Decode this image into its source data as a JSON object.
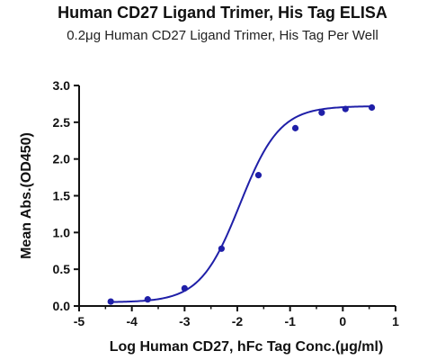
{
  "chart_data": {
    "type": "line",
    "title": "Human CD27 Ligand Trimer, His Tag ELISA",
    "subtitle": "0.2μg Human CD27 Ligand Trimer, His Tag Per Well",
    "xlabel": "Log Human CD27, hFc Tag Conc.(μg/ml)",
    "ylabel": "Mean Abs.(OD450)",
    "xlim": [
      -5,
      1
    ],
    "ylim": [
      0,
      3.0
    ],
    "xticks": [
      "-5",
      "-4",
      "-3",
      "-2",
      "-1",
      "0",
      "1"
    ],
    "yticks": [
      "0.0",
      "0.5",
      "1.0",
      "1.5",
      "2.0",
      "2.5",
      "3.0"
    ],
    "grid": false,
    "series": [
      {
        "x": [
          -4.4,
          -3.7,
          -3.0,
          -2.3,
          -1.6,
          -0.9,
          -0.4,
          0.05,
          0.55
        ],
        "y": [
          0.06,
          0.09,
          0.24,
          0.78,
          1.78,
          2.42,
          2.63,
          2.68,
          2.7
        ],
        "fit": {
          "bottom": 0.05,
          "top": 2.72,
          "logEC50": -1.95,
          "hill": 1.15
        },
        "color": "#1f1fa8"
      }
    ]
  }
}
